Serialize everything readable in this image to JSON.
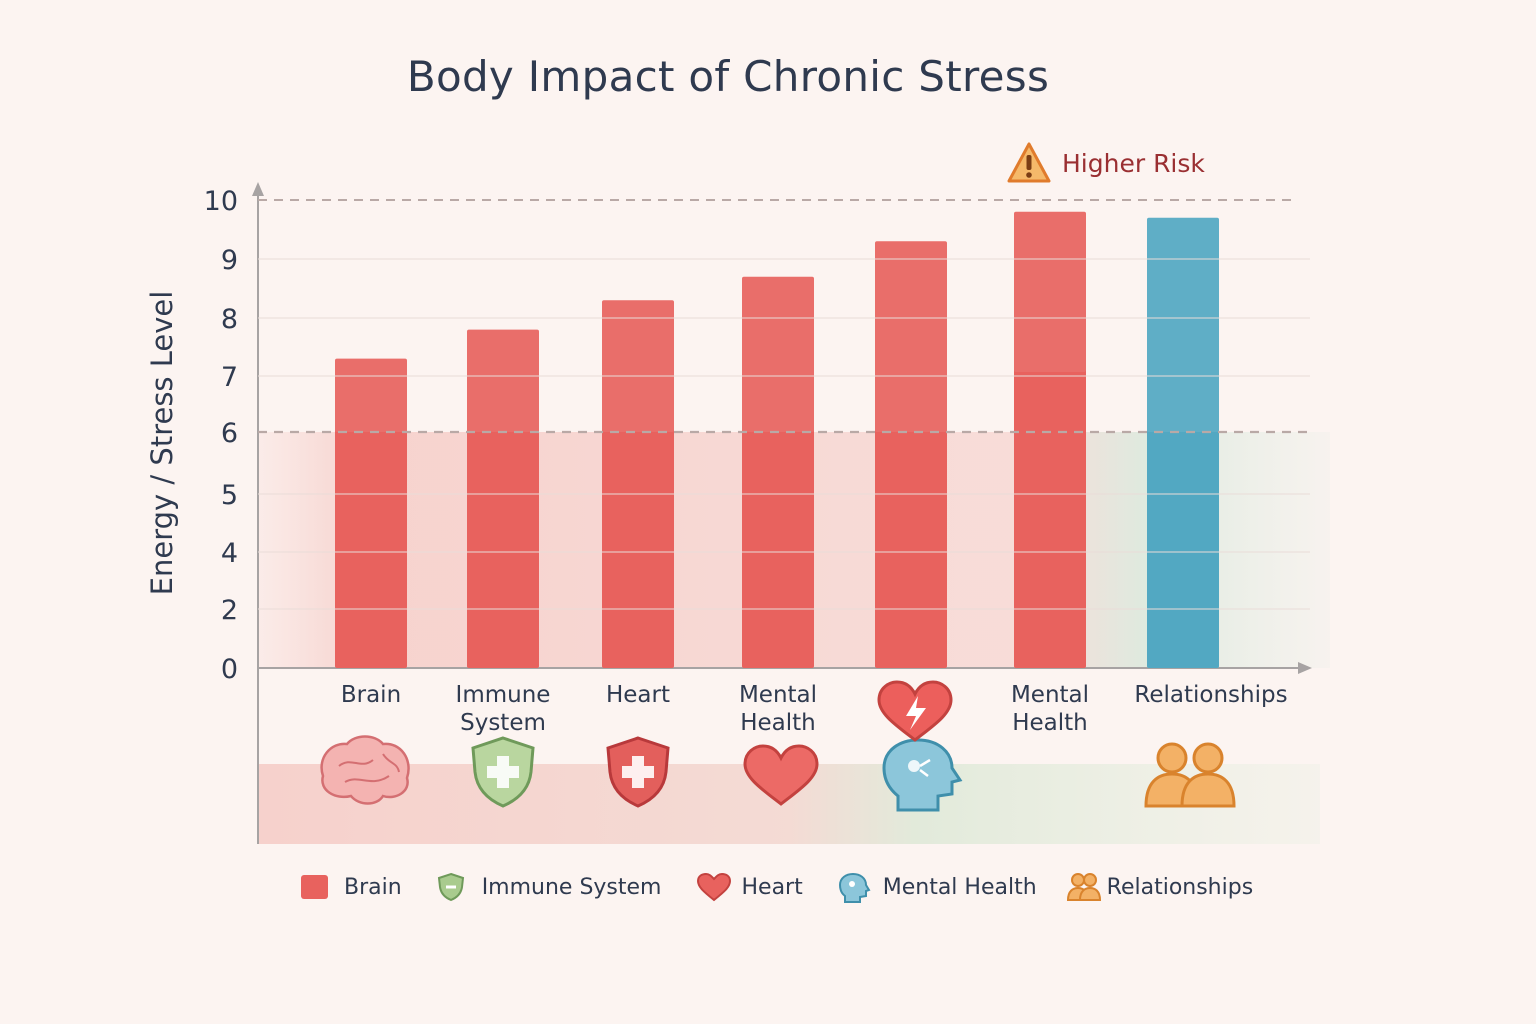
{
  "chart_data": {
    "type": "bar",
    "title": "Body Impact of Chronic Stress",
    "xlabel": "",
    "ylabel": "Energy / Stress Level",
    "y_ticks": [
      "0",
      "2",
      "4",
      "5",
      "6",
      "7",
      "8",
      "9",
      "10"
    ],
    "ylim": [
      0,
      10
    ],
    "grid": true,
    "threshold": 6,
    "risk_line": 10,
    "risk_label": "Higher Risk",
    "categories": [
      "Brain",
      "Immune System",
      "Heart",
      "Mental Health",
      "",
      "Mental Health",
      "Relationships"
    ],
    "category_lines": [
      [
        "Brain"
      ],
      [
        "Immune",
        "System"
      ],
      [
        "Heart"
      ],
      [
        "Mental",
        "Health"
      ],
      [],
      [
        "Mental",
        "Health"
      ],
      [
        "Relationships"
      ]
    ],
    "values": [
      7.3,
      7.8,
      8.3,
      8.7,
      9.3,
      9.8,
      9.7
    ],
    "bar_colors": [
      "#e8625e",
      "#e8625e",
      "#e8625e",
      "#e8625e",
      "#e8625e",
      "#e8625e",
      "#52a8c2"
    ],
    "icons": [
      "brain-icon",
      "shield-plus-icon",
      "shield-cross-icon",
      "heart-icon",
      "head-icon",
      "",
      "people-icon"
    ],
    "legend": [
      {
        "label": "Brain",
        "icon": "square-swatch",
        "color": "#e8625e"
      },
      {
        "label": "Immune System",
        "icon": "shield-icon",
        "color": "#9cc283"
      },
      {
        "label": "Heart",
        "icon": "heart-icon",
        "color": "#e8625e"
      },
      {
        "label": "Mental Health",
        "icon": "head-icon",
        "color": "#67afc9"
      },
      {
        "label": "Relationships",
        "icon": "people-icon",
        "color": "#f0a04b"
      }
    ]
  }
}
